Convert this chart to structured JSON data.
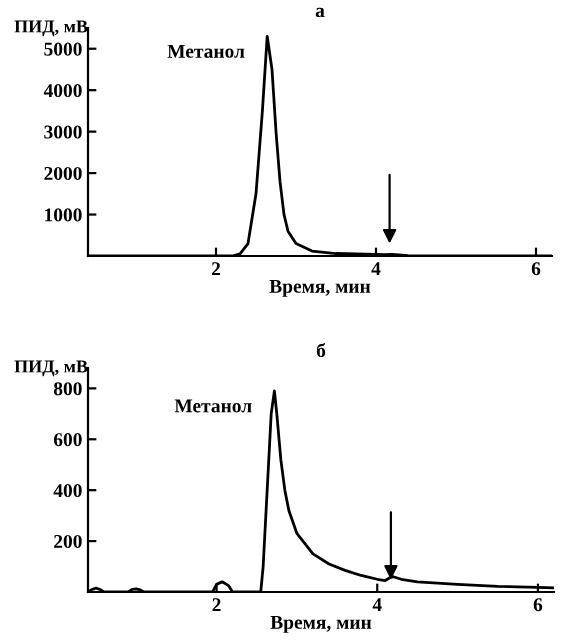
{
  "chart_data": [
    {
      "type": "line",
      "title": "а",
      "xlabel": "Время, мин",
      "ylabel": "ПИД, мВ",
      "xlim": [
        0.4,
        6.2
      ],
      "ylim": [
        0,
        5500
      ],
      "xticks": [
        2,
        4,
        6
      ],
      "yticks": [
        1000,
        2000,
        3000,
        4000,
        5000
      ],
      "grid": false,
      "legend": false,
      "marker": "none",
      "line_style": "solid",
      "series": [
        {
          "color": "#000000",
          "x": [
            0.4,
            2.2,
            2.3,
            2.4,
            2.5,
            2.58,
            2.64,
            2.7,
            2.75,
            2.8,
            2.85,
            2.9,
            3.0,
            3.2,
            3.5,
            4.0,
            4.1,
            4.2,
            4.4,
            5.0,
            6.2
          ],
          "values": [
            0,
            0,
            50,
            300,
            1500,
            3500,
            5300,
            4500,
            3000,
            1800,
            1000,
            600,
            300,
            120,
            60,
            40,
            30,
            40,
            10,
            0,
            0
          ]
        }
      ],
      "annotations": [
        {
          "text": "Метанол",
          "x": 2.64,
          "y": 5300
        }
      ]
    },
    {
      "type": "line",
      "title": "б",
      "xlabel": "Время, мин",
      "ylabel": "ПИД, мВ",
      "xlim": [
        0.4,
        6.2
      ],
      "ylim": [
        0,
        880
      ],
      "xticks": [
        2,
        4,
        6
      ],
      "yticks": [
        200,
        400,
        600,
        800
      ],
      "grid": false,
      "legend": false,
      "marker": "none",
      "line_style": "solid",
      "series": [
        {
          "color": "#000000",
          "x": [
            0.4,
            0.45,
            0.5,
            0.55,
            0.6,
            0.9,
            0.95,
            1.0,
            1.05,
            1.1,
            1.95,
            2.0,
            2.07,
            2.15,
            2.2,
            2.55,
            2.58,
            2.63,
            2.68,
            2.72,
            2.75,
            2.8,
            2.85,
            2.9,
            3.0,
            3.2,
            3.4,
            3.6,
            3.8,
            4.0,
            4.1,
            4.15,
            4.2,
            4.3,
            4.5,
            5.0,
            5.5,
            6.0,
            6.2
          ],
          "values": [
            0,
            10,
            15,
            10,
            0,
            0,
            10,
            12,
            8,
            0,
            0,
            30,
            40,
            25,
            0,
            0,
            100,
            400,
            700,
            790,
            700,
            520,
            400,
            320,
            230,
            150,
            110,
            85,
            65,
            50,
            45,
            55,
            60,
            50,
            40,
            30,
            22,
            18,
            16
          ]
        }
      ],
      "annotations": [
        {
          "text": "Метанол",
          "x": 2.72,
          "y": 790
        }
      ]
    }
  ]
}
